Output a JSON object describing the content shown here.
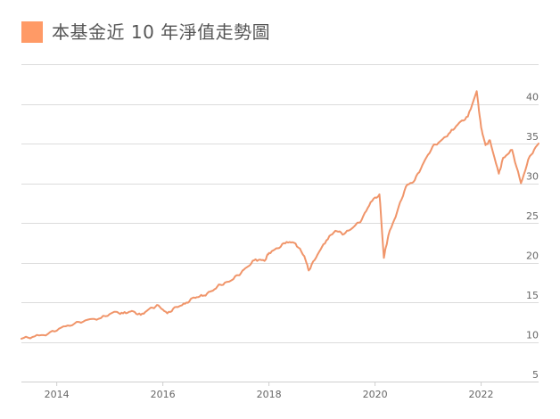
{
  "chart_data": {
    "type": "line",
    "title": "本基金近 10 年淨值走勢圖",
    "xlabel": "",
    "ylabel": "",
    "x_range": [
      "2013-05",
      "2023-02"
    ],
    "ylim": [
      5,
      45
    ],
    "y_ticks": [
      5,
      10,
      15,
      20,
      25,
      30,
      35,
      40
    ],
    "x_ticks": [
      "2014",
      "2016",
      "2018",
      "2020",
      "2022"
    ],
    "grid": true,
    "legend_position": "top-left",
    "series_color": "#ff9a66",
    "line_color": "#f0956a",
    "series": [
      {
        "x": [
          "2013-05",
          "2013-08",
          "2013-11",
          "2014-02",
          "2014-05",
          "2014-08",
          "2014-11",
          "2015-02",
          "2015-04",
          "2015-06",
          "2015-08",
          "2015-10",
          "2015-12",
          "2016-02",
          "2016-04",
          "2016-06",
          "2016-08",
          "2016-10",
          "2016-12",
          "2017-02",
          "2017-04",
          "2017-06",
          "2017-08",
          "2017-10",
          "2017-12",
          "2018-01",
          "2018-03",
          "2018-05",
          "2018-07",
          "2018-09",
          "2018-10",
          "2018-12",
          "2019-02",
          "2019-04",
          "2019-06",
          "2019-08",
          "2019-10",
          "2019-12",
          "2020-02",
          "2020-03",
          "2020-04",
          "2020-06",
          "2020-08",
          "2020-10",
          "2020-12",
          "2021-02",
          "2021-04",
          "2021-06",
          "2021-08",
          "2021-10",
          "2021-12",
          "2022-01",
          "2022-02",
          "2022-03",
          "2022-05",
          "2022-06",
          "2022-08",
          "2022-10",
          "2022-12",
          "2023-02"
        ],
        "values": [
          10.4,
          10.7,
          11.0,
          11.8,
          12.3,
          12.8,
          13.0,
          13.8,
          13.6,
          13.9,
          13.4,
          14.2,
          14.6,
          13.6,
          14.4,
          14.8,
          15.6,
          15.8,
          16.4,
          17.2,
          17.6,
          18.4,
          19.4,
          20.4,
          20.2,
          21.2,
          21.8,
          22.6,
          22.4,
          20.8,
          19.0,
          21.0,
          22.8,
          24.0,
          23.6,
          24.4,
          25.4,
          27.6,
          28.6,
          20.6,
          23.4,
          26.4,
          29.6,
          30.4,
          32.6,
          34.6,
          35.4,
          36.4,
          37.6,
          38.4,
          41.6,
          37.0,
          34.8,
          35.4,
          31.2,
          33.2,
          34.2,
          30.0,
          33.4,
          35.0
        ]
      }
    ]
  }
}
